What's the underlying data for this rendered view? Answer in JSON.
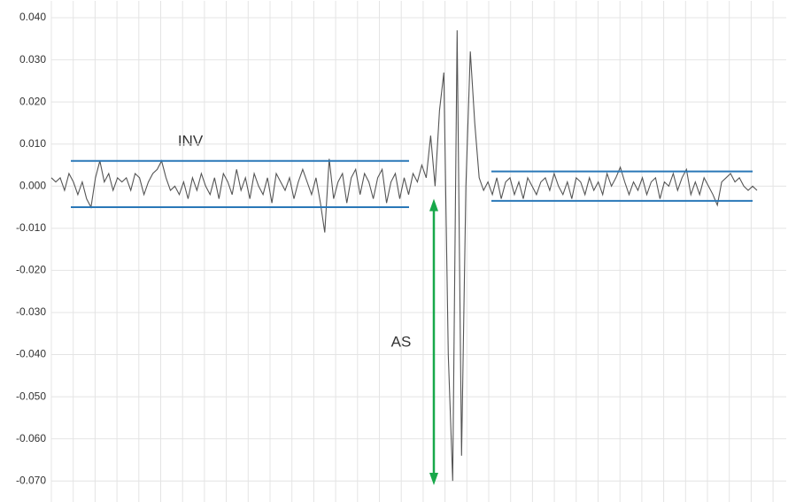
{
  "chart_data": {
    "type": "line",
    "ylim": [
      -0.075,
      0.044
    ],
    "yticks": [
      {
        "value": 0.04,
        "label": "0.040"
      },
      {
        "value": 0.03,
        "label": "0.030"
      },
      {
        "value": 0.02,
        "label": "0.020"
      },
      {
        "value": 0.01,
        "label": "0.010"
      },
      {
        "value": 0,
        "label": "0.000"
      },
      {
        "value": -0.01,
        "label": "-0.010"
      },
      {
        "value": -0.02,
        "label": "-0.020"
      },
      {
        "value": -0.03,
        "label": "-0.030"
      },
      {
        "value": -0.04,
        "label": "-0.040"
      },
      {
        "value": -0.05,
        "label": "-0.050"
      },
      {
        "value": -0.06,
        "label": "-0.060"
      },
      {
        "value": -0.07,
        "label": "-0.070"
      }
    ],
    "grid": true,
    "color": "#555555",
    "values": [
      0.002,
      0.001,
      0.002,
      -0.001,
      0.003,
      0.001,
      -0.002,
      0.001,
      -0.003,
      -0.005,
      0.002,
      0.006,
      0.001,
      0.003,
      -0.001,
      0.002,
      0.001,
      0.002,
      -0.001,
      0.003,
      0.002,
      -0.002,
      0.001,
      0.003,
      0.004,
      0.006,
      0.002,
      -0.001,
      0.0,
      -0.002,
      0.001,
      -0.003,
      0.002,
      -0.001,
      0.003,
      0.0,
      -0.002,
      0.002,
      -0.003,
      0.003,
      0.001,
      -0.002,
      0.004,
      -0.001,
      0.002,
      -0.003,
      0.003,
      0.0,
      -0.002,
      0.002,
      -0.004,
      0.003,
      0.001,
      -0.001,
      0.002,
      -0.003,
      0.001,
      0.004,
      0.001,
      -0.002,
      0.002,
      -0.004,
      -0.011,
      0.0065,
      -0.003,
      0.001,
      0.003,
      -0.004,
      0.002,
      0.004,
      -0.002,
      0.003,
      0.001,
      -0.003,
      0.002,
      0.004,
      -0.004,
      0.001,
      0.003,
      -0.003,
      0.002,
      -0.002,
      0.003,
      0.001,
      0.005,
      0.002,
      0.012,
      0.0,
      0.018,
      0.027,
      -0.04,
      -0.07,
      0.037,
      -0.064,
      0.0,
      0.032,
      0.015,
      0.002,
      -0.001,
      0.001,
      -0.002,
      0.002,
      -0.003,
      0.001,
      0.002,
      -0.002,
      0.001,
      -0.003,
      0.002,
      0.0,
      -0.002,
      0.001,
      0.002,
      -0.001,
      0.003,
      0.0,
      -0.002,
      0.001,
      -0.003,
      0.002,
      0.001,
      -0.002,
      0.002,
      -0.001,
      0.001,
      -0.002,
      0.003,
      0.0,
      0.002,
      0.0045,
      0.001,
      -0.002,
      0.001,
      -0.001,
      0.002,
      -0.002,
      0.001,
      0.002,
      -0.003,
      0.001,
      0.0,
      0.003,
      -0.001,
      0.002,
      0.004,
      -0.002,
      0.001,
      -0.002,
      0.002,
      0.0,
      -0.002,
      -0.0045,
      0.001,
      0.002,
      0.003,
      0.001,
      0.002,
      0.0,
      -0.001,
      0.0,
      -0.001
    ],
    "bands": [
      {
        "upper": 0.006,
        "lower": -0.005
      },
      {
        "upper": 0.0035,
        "lower": -0.0035
      }
    ],
    "band_color": "#2a78b8",
    "band_label": "INV",
    "arrow": {
      "top": -0.003,
      "bottom": -0.071,
      "label": "AS",
      "color": "#18a84a"
    }
  }
}
